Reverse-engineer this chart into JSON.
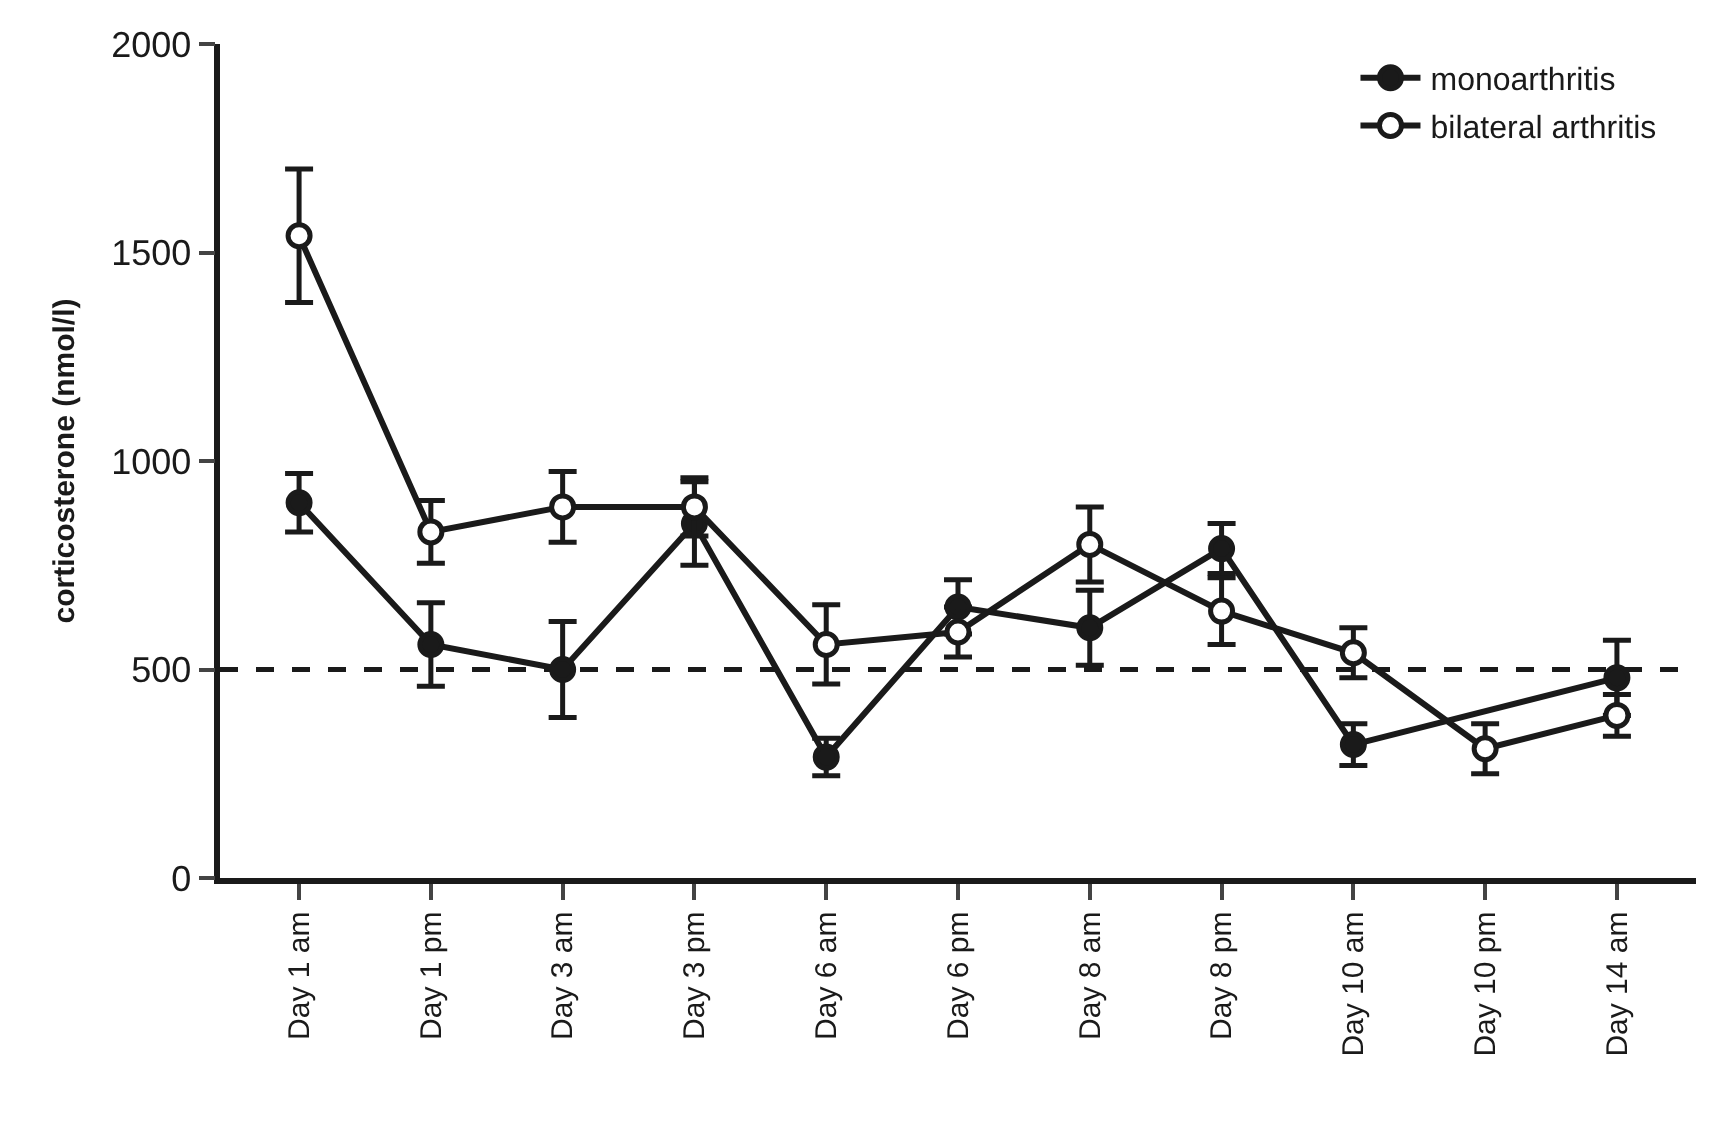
{
  "chart_data": {
    "type": "line",
    "ylabel": "corticosterone (nmol/l)",
    "categories": [
      "Day 1 am",
      "Day 1 pm",
      "Day 3 am",
      "Day 3 pm",
      "Day 6 am",
      "Day 6 pm",
      "Day 8 am",
      "Day 8 pm",
      "Day 10 am",
      "Day 10 pm",
      "Day 14 am"
    ],
    "series": [
      {
        "name": "monoarthritis",
        "color": "#1a1a1a",
        "values": [
          900,
          560,
          500,
          850,
          290,
          650,
          600,
          790,
          320,
          null,
          480
        ],
        "errors": [
          70,
          100,
          115,
          100,
          45,
          65,
          90,
          60,
          50,
          null,
          90
        ]
      },
      {
        "name": "bilateral arthritis",
        "color": "#1a1a1a",
        "values": [
          1540,
          830,
          890,
          890,
          560,
          590,
          800,
          640,
          540,
          310,
          390
        ],
        "errors": [
          160,
          75,
          85,
          70,
          95,
          60,
          90,
          80,
          60,
          60,
          50
        ]
      }
    ],
    "ylim": [
      0,
      2000
    ],
    "yticks": [
      0,
      500,
      1000,
      1500,
      2000
    ],
    "ref_lines": [
      {
        "axis": "y",
        "value": 500,
        "line_style": "dashed",
        "color": "#1a1a1a"
      }
    ],
    "legend": "top right",
    "marker": "circle",
    "line_style": "solid"
  }
}
